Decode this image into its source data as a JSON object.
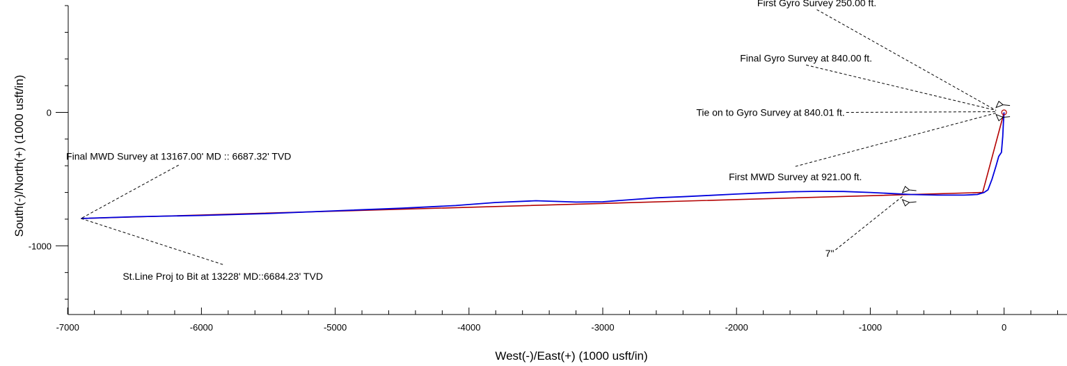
{
  "chart_data": {
    "type": "line",
    "xlabel": "West(-)/East(+) (1000 usft/in)",
    "ylabel": "South(-)/North(+) (1000 usft/in)",
    "xlim": [
      -7000,
      500
    ],
    "ylim": [
      -1550,
      820
    ],
    "x_ticks": [
      "-7000",
      "-6000",
      "-5000",
      "-4000",
      "-3000",
      "-2000",
      "-1000",
      "0"
    ],
    "x_tick_values": [
      -7000,
      -6000,
      -5000,
      -4000,
      -3000,
      -2000,
      -1000,
      0
    ],
    "y_ticks": [
      "0",
      "-1000"
    ],
    "y_tick_values": [
      0,
      -1000
    ],
    "x_minor_step": 200,
    "y_minor_step": 200,
    "grid": false,
    "series": [
      {
        "color": "#b40000",
        "x": [
          0,
          -160,
          -6900
        ],
        "y": [
          0,
          -600,
          -795
        ]
      },
      {
        "color": "#0000dd",
        "x": [
          0,
          -5,
          -10,
          -20,
          -40,
          -60,
          -90,
          -120,
          -150,
          -200,
          -300,
          -500,
          -700,
          -1000,
          -1200,
          -1400,
          -1600,
          -1800,
          -2000,
          -2200,
          -2400,
          -2600,
          -2800,
          -3000,
          -3200,
          -3500,
          -3800,
          -4100,
          -4500,
          -5000,
          -5500,
          -6000,
          -6500,
          -6900
        ],
        "y": [
          0,
          -80,
          -180,
          -300,
          -330,
          -400,
          -500,
          -580,
          -600,
          -615,
          -620,
          -620,
          -615,
          -600,
          -593,
          -592,
          -595,
          -603,
          -612,
          -622,
          -632,
          -640,
          -655,
          -670,
          -672,
          -662,
          -675,
          -698,
          -718,
          -738,
          -758,
          -772,
          -782,
          -795
        ]
      }
    ],
    "annotations": [
      {
        "text": "First Gyro Survey 250.00 ft.",
        "x": -1400,
        "y": 770,
        "anchor_x": -60,
        "anchor_y": 15
      },
      {
        "text": "Final Gyro Survey at 840.00 ft.",
        "x": -1480,
        "y": 355,
        "anchor_x": -60,
        "anchor_y": 15
      },
      {
        "text": "Tie on to Gyro Survey at 840.01 ft.",
        "x": -1180,
        "y": 0,
        "anchor_x": -60,
        "anchor_y": 5
      },
      {
        "text": "First MWD Survey at 921.00 ft.",
        "x": -1560,
        "y": -405,
        "anchor_x": -60,
        "anchor_y": -5
      },
      {
        "text": "Final MWD Survey at 13167.00' MD :: 6687.32' TVD",
        "x": -6170,
        "y": -395,
        "anchor_x": -6900,
        "anchor_y": -795
      },
      {
        "text": "St.Line Proj to Bit at 13228' MD::6684.23' TVD",
        "x": -5840,
        "y": -1140,
        "anchor_x": -6900,
        "anchor_y": -795
      },
      {
        "text": "7\"",
        "x": -1260,
        "y": -1030,
        "anchor_x": -760,
        "anchor_y": -630
      }
    ],
    "casing_markers": [
      {
        "x": -60,
        "y": 10
      },
      {
        "x": -760,
        "y": -628
      }
    ]
  }
}
